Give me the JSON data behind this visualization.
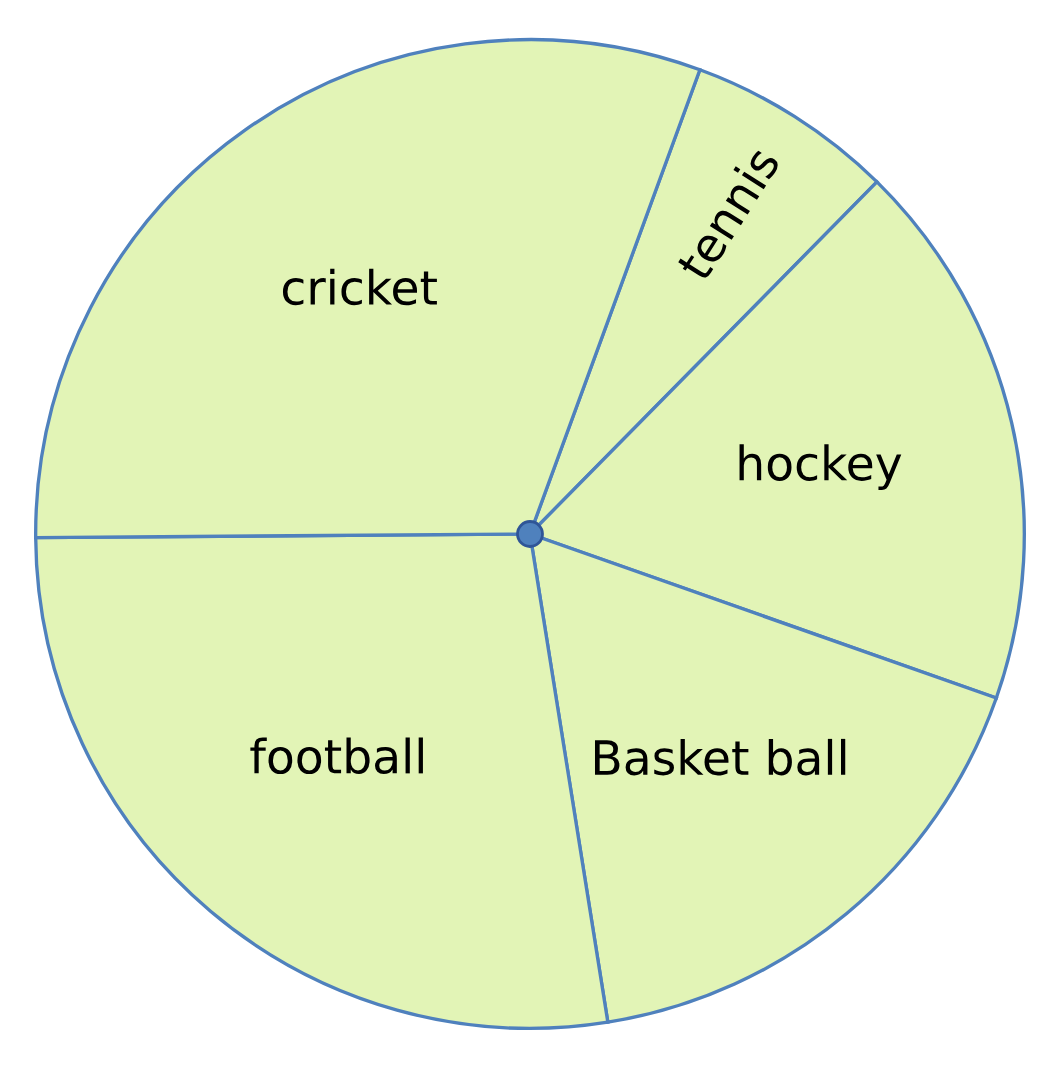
{
  "chart_data": {
    "type": "pie",
    "categories": [
      "tennis",
      "hockey",
      "Basket ball",
      "football",
      "cricket"
    ],
    "values": [
      6.8,
      18.0,
      17.1,
      27.4,
      30.7
    ],
    "colors": [
      "#e2f4b6",
      "#e2f4b6",
      "#e2f4b6",
      "#e2f4b6",
      "#e2f4b6"
    ],
    "legend": false
  }
}
